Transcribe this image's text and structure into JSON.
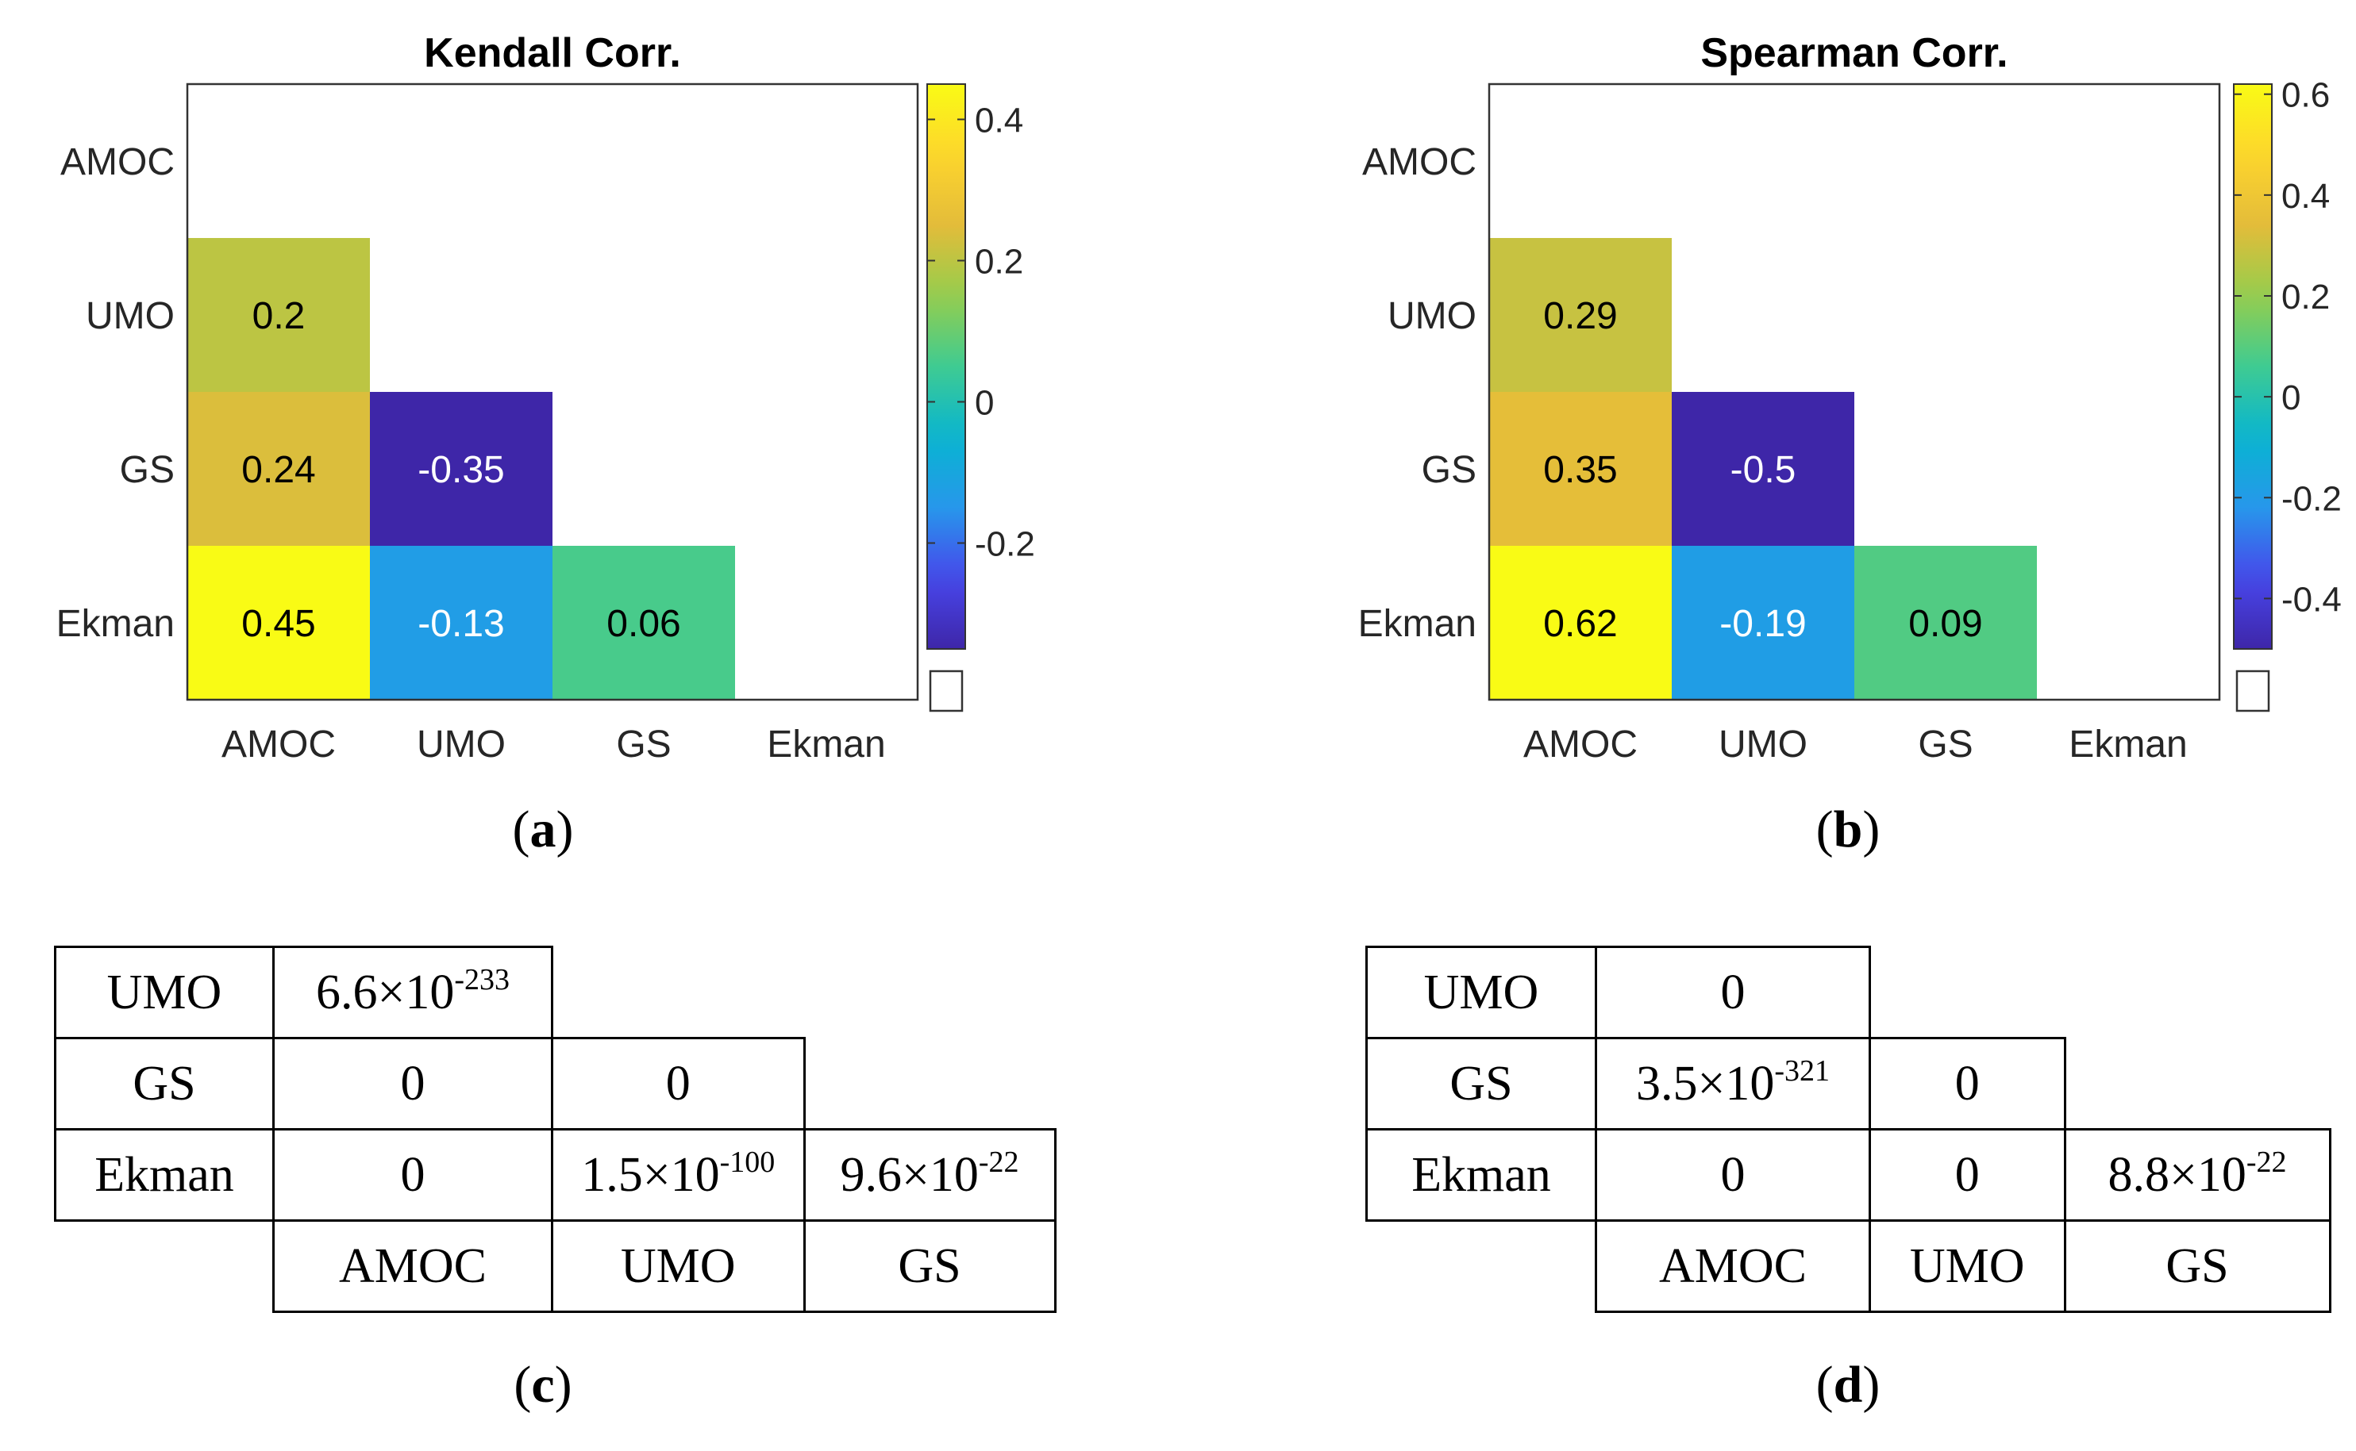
{
  "chart_data": [
    {
      "type": "heatmap",
      "panel_label": "a",
      "title": "Kendall Corr.",
      "row_labels": [
        "AMOC",
        "UMO",
        "GS",
        "Ekman"
      ],
      "col_labels": [
        "AMOC",
        "UMO",
        "GS",
        "Ekman"
      ],
      "cells": [
        {
          "row": "UMO",
          "col": "AMOC",
          "value": 0.2
        },
        {
          "row": "GS",
          "col": "AMOC",
          "value": 0.24
        },
        {
          "row": "GS",
          "col": "UMO",
          "value": -0.35
        },
        {
          "row": "Ekman",
          "col": "AMOC",
          "value": 0.45
        },
        {
          "row": "Ekman",
          "col": "UMO",
          "value": -0.13
        },
        {
          "row": "Ekman",
          "col": "GS",
          "value": 0.06
        }
      ],
      "colorbar": {
        "min": -0.35,
        "max": 0.45,
        "ticks": [
          -0.2,
          0,
          0.2,
          0.4
        ],
        "tick_labels": [
          "-0.2",
          "0",
          "0.2",
          "0.4"
        ]
      }
    },
    {
      "type": "heatmap",
      "panel_label": "b",
      "title": "Spearman Corr.",
      "row_labels": [
        "AMOC",
        "UMO",
        "GS",
        "Ekman"
      ],
      "col_labels": [
        "AMOC",
        "UMO",
        "GS",
        "Ekman"
      ],
      "cells": [
        {
          "row": "UMO",
          "col": "AMOC",
          "value": 0.29
        },
        {
          "row": "GS",
          "col": "AMOC",
          "value": 0.35
        },
        {
          "row": "GS",
          "col": "UMO",
          "value": -0.5
        },
        {
          "row": "Ekman",
          "col": "AMOC",
          "value": 0.62
        },
        {
          "row": "Ekman",
          "col": "UMO",
          "value": -0.19
        },
        {
          "row": "Ekman",
          "col": "GS",
          "value": 0.09
        }
      ],
      "colorbar": {
        "min": -0.5,
        "max": 0.62,
        "ticks": [
          -0.4,
          -0.2,
          0,
          0.2,
          0.4,
          0.6
        ],
        "tick_labels": [
          "-0.4",
          "-0.2",
          "0",
          "0.2",
          "0.4",
          "0.6"
        ]
      }
    }
  ],
  "tables": {
    "c": {
      "panel_label": "c",
      "rows": [
        {
          "label": "UMO",
          "cells": [
            {
              "m": "6.6×10",
              "e": "-233"
            }
          ]
        },
        {
          "label": "GS",
          "cells": [
            {
              "m": "0",
              "e": ""
            },
            {
              "m": "0",
              "e": ""
            }
          ]
        },
        {
          "label": "Ekman",
          "cells": [
            {
              "m": "0",
              "e": ""
            },
            {
              "m": "1.5×10",
              "e": "-100"
            },
            {
              "m": "9.6×10",
              "e": "-22"
            }
          ]
        }
      ],
      "col_labels": [
        "AMOC",
        "UMO",
        "GS"
      ]
    },
    "d": {
      "panel_label": "d",
      "rows": [
        {
          "label": "UMO",
          "cells": [
            {
              "m": "0",
              "e": ""
            }
          ]
        },
        {
          "label": "GS",
          "cells": [
            {
              "m": "3.5×10",
              "e": "-321"
            },
            {
              "m": "0",
              "e": ""
            }
          ]
        },
        {
          "label": "Ekman",
          "cells": [
            {
              "m": "0",
              "e": ""
            },
            {
              "m": "0",
              "e": ""
            },
            {
              "m": "8.8×10",
              "e": "-22"
            }
          ]
        }
      ],
      "col_labels": [
        "AMOC",
        "UMO",
        "GS"
      ]
    }
  }
}
